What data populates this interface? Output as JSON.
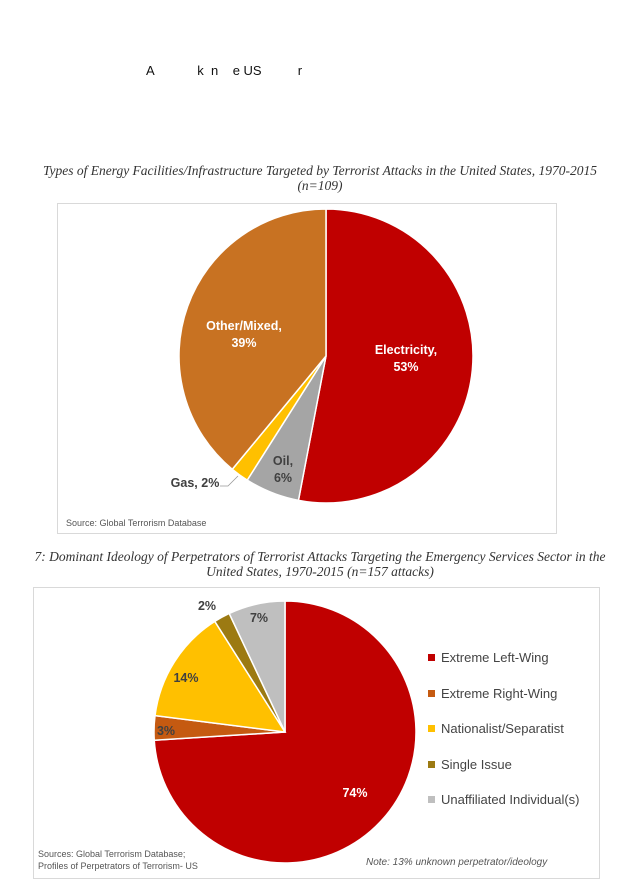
{
  "page": {
    "heading": "A            k  n    e US          r"
  },
  "chart_data": [
    {
      "type": "pie",
      "title_line1": "Types of Energy Facilities/Infrastructure Targeted by Terrorist Attacks in the United States, 1970-2015",
      "title_line2": "(n=109)",
      "source": "Source: Global Terrorism Database",
      "slices": [
        {
          "name": "Electricity",
          "value": 53,
          "label": "53%",
          "color": "#C00000",
          "text_color": "#ffffff"
        },
        {
          "name": "Oil",
          "value": 6,
          "label": "6%",
          "color": "#A5A5A5",
          "text_color": "#404040"
        },
        {
          "name": "Gas",
          "value": 2,
          "label": "2%",
          "color": "#FFC000",
          "text_color": "#404040"
        },
        {
          "name": "Other/Mixed",
          "value": 39,
          "label": "39%",
          "color": "#C87222",
          "text_color": "#ffffff"
        }
      ]
    },
    {
      "type": "pie",
      "title_line1": "7: Dominant Ideology of Perpetrators of Terrorist Attacks Targeting the Emergency Services Sector in the",
      "title_line2": "United States, 1970-2015 (n=157 attacks)",
      "source_line1": "Sources: Global Terrorism Database;",
      "source_line2": "Profiles of Perpetrators of Terrorism- US",
      "note": "Note: 13% unknown perpetrator/ideology",
      "legend_position": "right",
      "slices": [
        {
          "name": "Extreme Left-Wing",
          "value": 74,
          "label": "74%",
          "color": "#C00000"
        },
        {
          "name": "Extreme Right-Wing",
          "value": 3,
          "label": "3%",
          "color": "#C55A11"
        },
        {
          "name": "Nationalist/Separatist",
          "value": 14,
          "label": "14%",
          "color": "#FFC000"
        },
        {
          "name": "Single Issue",
          "value": 2,
          "label": "2%",
          "color": "#9C7A12"
        },
        {
          "name": "Unaffiliated Individual(s)",
          "value": 7,
          "label": "7%",
          "color": "#BFBFBF"
        }
      ]
    }
  ]
}
